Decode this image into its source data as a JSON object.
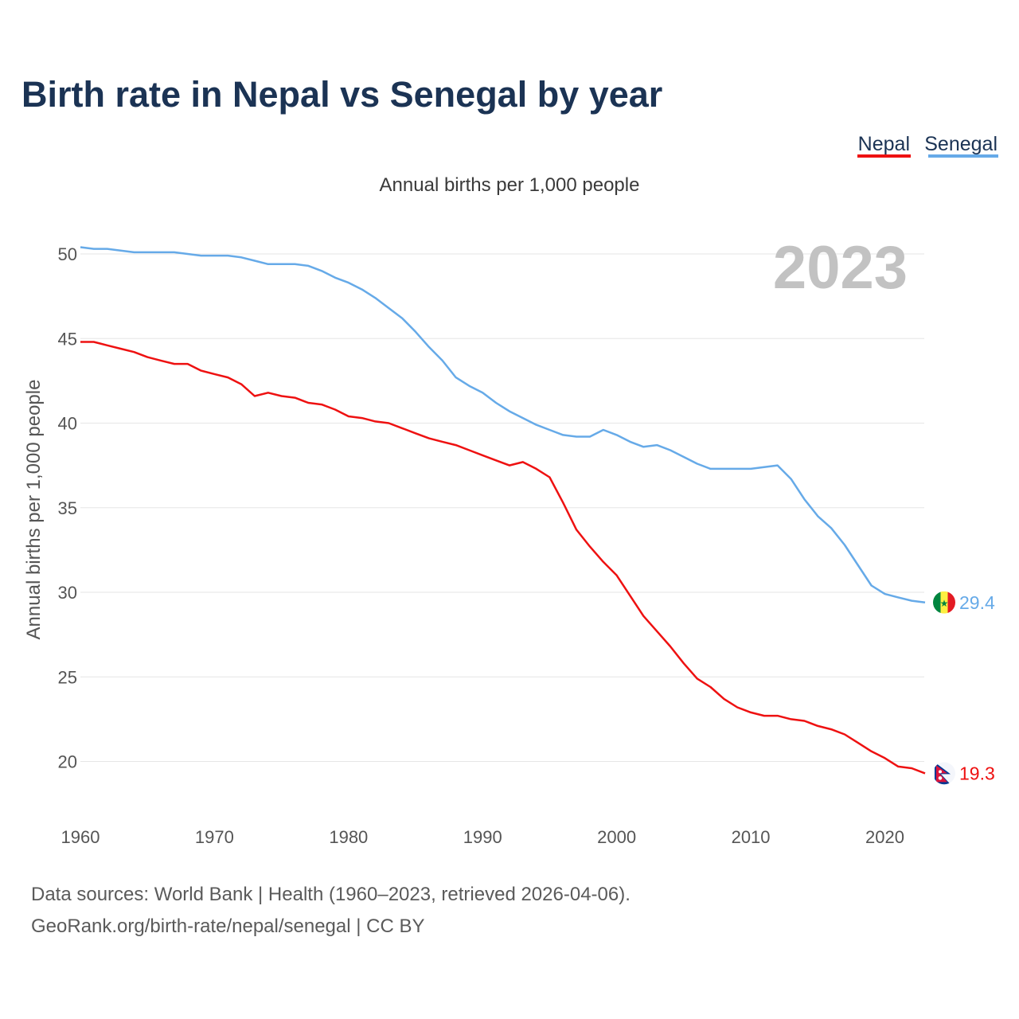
{
  "header": {
    "title": "Birth rate in Nepal vs Senegal by year"
  },
  "legend": {
    "items": [
      {
        "label": "Nepal",
        "color": "#ee1111"
      },
      {
        "label": "Senegal",
        "color": "#66aae8"
      }
    ]
  },
  "chart_data": {
    "type": "line",
    "title": "Birth rate in Nepal vs Senegal by year",
    "subtitle": "Annual births per 1,000 people",
    "xlabel": "",
    "ylabel": "Annual births per 1,000 people",
    "xlim": [
      1960,
      2024
    ],
    "ylim": [
      17,
      52
    ],
    "y_ticks": [
      20,
      25,
      30,
      35,
      40,
      45,
      50
    ],
    "x_ticks": [
      1960,
      1970,
      1980,
      1990,
      2000,
      2010,
      2020
    ],
    "grid": true,
    "year_stamp": "2023",
    "x": [
      1960,
      1961,
      1962,
      1963,
      1964,
      1965,
      1966,
      1967,
      1968,
      1969,
      1970,
      1971,
      1972,
      1973,
      1974,
      1975,
      1976,
      1977,
      1978,
      1979,
      1980,
      1981,
      1982,
      1983,
      1984,
      1985,
      1986,
      1987,
      1988,
      1989,
      1990,
      1991,
      1992,
      1993,
      1994,
      1995,
      1996,
      1997,
      1998,
      1999,
      2000,
      2001,
      2002,
      2003,
      2004,
      2005,
      2006,
      2007,
      2008,
      2009,
      2010,
      2011,
      2012,
      2013,
      2014,
      2015,
      2016,
      2017,
      2018,
      2019,
      2020,
      2021,
      2022,
      2023
    ],
    "series": [
      {
        "name": "Nepal",
        "color": "#ee1111",
        "values": [
          44.8,
          44.8,
          44.6,
          44.4,
          44.2,
          43.9,
          43.7,
          43.5,
          43.5,
          43.1,
          42.9,
          42.7,
          42.3,
          41.6,
          41.8,
          41.6,
          41.5,
          41.2,
          41.1,
          40.8,
          40.4,
          40.3,
          40.1,
          40.0,
          39.7,
          39.4,
          39.1,
          38.9,
          38.7,
          38.4,
          38.1,
          37.8,
          37.5,
          37.7,
          37.3,
          36.8,
          35.3,
          33.7,
          32.7,
          31.8,
          31.0,
          29.8,
          28.6,
          27.7,
          26.8,
          25.8,
          24.9,
          24.4,
          23.7,
          23.2,
          22.9,
          22.7,
          22.7,
          22.5,
          22.4,
          22.1,
          21.9,
          21.6,
          21.1,
          20.6,
          20.2,
          19.7,
          19.6,
          19.3
        ],
        "end_value_label": "19.3",
        "flag": "nepal-flag"
      },
      {
        "name": "Senegal",
        "color": "#66aae8",
        "values": [
          50.4,
          50.3,
          50.3,
          50.2,
          50.1,
          50.1,
          50.1,
          50.1,
          50.0,
          49.9,
          49.9,
          49.9,
          49.8,
          49.6,
          49.4,
          49.4,
          49.4,
          49.3,
          49.0,
          48.6,
          48.3,
          47.9,
          47.4,
          46.8,
          46.2,
          45.4,
          44.5,
          43.7,
          42.7,
          42.2,
          41.8,
          41.2,
          40.7,
          40.3,
          39.9,
          39.6,
          39.3,
          39.2,
          39.2,
          39.6,
          39.3,
          38.9,
          38.6,
          38.7,
          38.4,
          38.0,
          37.6,
          37.3,
          37.3,
          37.3,
          37.3,
          37.4,
          37.5,
          36.7,
          35.5,
          34.5,
          33.8,
          32.8,
          31.6,
          30.4,
          29.9,
          29.7,
          29.5,
          29.4
        ],
        "end_value_label": "29.4",
        "flag": "senegal-flag"
      }
    ]
  },
  "footer": {
    "source_line1": "Data sources: World Bank | Health (1960–2023, retrieved 2026-04-06).",
    "source_line2": "GeoRank.org/birth-rate/nepal/senegal | CC BY"
  }
}
